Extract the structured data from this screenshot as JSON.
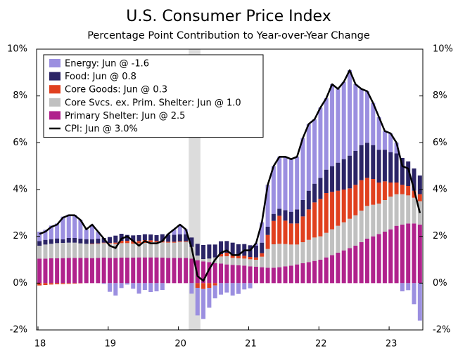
{
  "chart_data": {
    "type": "bar",
    "stacked": true,
    "title": "U.S. Consumer Price Index",
    "subtitle": "Percentage Point Contribution to Year-over-Year Change",
    "categories": [
      "18",
      null,
      null,
      null,
      null,
      null,
      null,
      null,
      null,
      null,
      null,
      null,
      "19",
      null,
      null,
      null,
      null,
      null,
      null,
      null,
      null,
      null,
      null,
      null,
      "20",
      null,
      null,
      null,
      null,
      null,
      null,
      null,
      null,
      null,
      null,
      null,
      "21",
      null,
      null,
      null,
      null,
      null,
      null,
      null,
      null,
      null,
      null,
      null,
      "22",
      null,
      null,
      null,
      null,
      null,
      null,
      null,
      null,
      null,
      null,
      null,
      "23",
      null,
      null,
      null,
      null,
      null
    ],
    "shade": [
      26,
      27
    ],
    "shade_color": "#dcdcdc",
    "ylim": [
      -2,
      10
    ],
    "yticks": [
      {
        "value": -2,
        "label": "-2%"
      },
      {
        "value": 0,
        "label": "0%"
      },
      {
        "value": 2,
        "label": "2%"
      },
      {
        "value": 4,
        "label": "4%"
      },
      {
        "value": 6,
        "label": "6%"
      },
      {
        "value": 8,
        "label": "8%"
      },
      {
        "value": 10,
        "label": "10%"
      }
    ],
    "y2lim": [
      -2,
      10
    ],
    "y2ticks": [
      {
        "value": -2,
        "label": "-2%"
      },
      {
        "value": 0,
        "label": "0%"
      },
      {
        "value": 2,
        "label": "2%"
      },
      {
        "value": 4,
        "label": "4%"
      },
      {
        "value": 6,
        "label": "6%"
      },
      {
        "value": 8,
        "label": "8%"
      },
      {
        "value": 10,
        "label": "10%"
      }
    ],
    "legend": "upper left",
    "series": [
      {
        "name": "Primary Shelter: Jun @ 2.5",
        "color": "#b0228c",
        "values": [
          1.05,
          1.05,
          1.06,
          1.06,
          1.07,
          1.08,
          1.08,
          1.08,
          1.08,
          1.07,
          1.08,
          1.09,
          1.08,
          1.08,
          1.09,
          1.09,
          1.09,
          1.1,
          1.1,
          1.1,
          1.1,
          1.09,
          1.08,
          1.08,
          1.08,
          1.08,
          1.05,
          0.98,
          0.93,
          0.9,
          0.85,
          0.84,
          0.8,
          0.78,
          0.76,
          0.75,
          0.72,
          0.7,
          0.68,
          0.66,
          0.66,
          0.68,
          0.72,
          0.75,
          0.8,
          0.85,
          0.9,
          0.95,
          1.0,
          1.1,
          1.2,
          1.3,
          1.4,
          1.5,
          1.6,
          1.75,
          1.9,
          2.0,
          2.1,
          2.2,
          2.3,
          2.45,
          2.5,
          2.55,
          2.55,
          2.5
        ]
      },
      {
        "name": "Core Svcs. ex. Prim. Shelter: Jun @ 1.0",
        "color": "#c0c0c0",
        "values": [
          0.55,
          0.6,
          0.62,
          0.65,
          0.65,
          0.65,
          0.65,
          0.62,
          0.6,
          0.6,
          0.6,
          0.62,
          0.62,
          0.6,
          0.62,
          0.62,
          0.6,
          0.6,
          0.62,
          0.65,
          0.65,
          0.65,
          0.65,
          0.65,
          0.68,
          0.68,
          0.5,
          0.2,
          0.1,
          0.15,
          0.25,
          0.3,
          0.35,
          0.3,
          0.3,
          0.3,
          0.3,
          0.3,
          0.45,
          0.8,
          1.0,
          1.0,
          0.95,
          0.9,
          0.85,
          0.9,
          0.95,
          1.0,
          1.0,
          1.05,
          1.1,
          1.15,
          1.2,
          1.25,
          1.3,
          1.35,
          1.4,
          1.35,
          1.3,
          1.35,
          1.4,
          1.35,
          1.3,
          1.2,
          1.1,
          1.0
        ]
      },
      {
        "name": "Core Goods: Jun @ 0.3",
        "color": "#e0401f",
        "values": [
          -0.1,
          -0.08,
          -0.06,
          -0.05,
          -0.04,
          -0.03,
          -0.02,
          -0.01,
          0.0,
          0.02,
          0.02,
          0.02,
          0.02,
          0.05,
          0.1,
          0.1,
          0.1,
          0.1,
          0.12,
          0.08,
          0.05,
          0.05,
          0.04,
          0.04,
          0.03,
          0.03,
          0.0,
          -0.2,
          -0.25,
          -0.2,
          -0.1,
          0.1,
          0.15,
          0.1,
          0.1,
          0.12,
          0.1,
          0.1,
          0.15,
          0.6,
          1.0,
          1.2,
          1.0,
          0.9,
          0.9,
          1.1,
          1.3,
          1.5,
          1.6,
          1.7,
          1.6,
          1.5,
          1.4,
          1.3,
          1.3,
          1.3,
          1.2,
          1.1,
          0.9,
          0.8,
          0.6,
          0.5,
          0.4,
          0.4,
          0.3,
          0.3
        ]
      },
      {
        "name": "Food: Jun @ 0.8",
        "color": "#2b2466",
        "values": [
          0.2,
          0.2,
          0.2,
          0.2,
          0.15,
          0.2,
          0.2,
          0.2,
          0.2,
          0.18,
          0.2,
          0.2,
          0.25,
          0.3,
          0.3,
          0.25,
          0.25,
          0.25,
          0.25,
          0.25,
          0.25,
          0.3,
          0.3,
          0.3,
          0.3,
          0.3,
          0.4,
          0.5,
          0.6,
          0.6,
          0.55,
          0.55,
          0.5,
          0.55,
          0.5,
          0.5,
          0.5,
          0.5,
          0.45,
          0.35,
          0.3,
          0.3,
          0.45,
          0.5,
          0.6,
          0.7,
          0.8,
          0.8,
          0.9,
          1.0,
          1.1,
          1.2,
          1.3,
          1.4,
          1.45,
          1.5,
          1.5,
          1.45,
          1.4,
          1.35,
          1.3,
          1.25,
          1.15,
          1.05,
          0.95,
          0.8
        ]
      },
      {
        "name": "Energy: Jun @ -1.6",
        "color": "#9b8fe0",
        "values": [
          0.4,
          0.43,
          0.58,
          0.64,
          0.97,
          1.0,
          0.99,
          0.81,
          0.42,
          0.63,
          0.3,
          -0.03,
          -0.37,
          -0.53,
          -0.21,
          -0.06,
          -0.24,
          -0.45,
          -0.29,
          -0.38,
          -0.35,
          -0.29,
          0.03,
          0.23,
          0.41,
          0.21,
          -0.45,
          -1.18,
          -1.28,
          -0.85,
          -0.55,
          -0.49,
          -0.4,
          -0.53,
          -0.46,
          -0.27,
          -0.22,
          0.1,
          0.87,
          1.79,
          2.04,
          2.22,
          2.28,
          2.25,
          2.25,
          2.65,
          2.85,
          2.75,
          3.0,
          3.05,
          3.5,
          3.15,
          3.3,
          3.65,
          2.85,
          2.4,
          2.2,
          1.8,
          1.4,
          0.8,
          0.8,
          0.45,
          -0.35,
          -0.3,
          -0.9,
          -1.6
        ]
      },
      {
        "name": "CPI: Jun @ 3.0%",
        "color": "#000000",
        "type": "line",
        "values": [
          2.1,
          2.2,
          2.4,
          2.5,
          2.8,
          2.9,
          2.9,
          2.7,
          2.3,
          2.5,
          2.2,
          1.9,
          1.6,
          1.5,
          1.9,
          2.0,
          1.8,
          1.6,
          1.8,
          1.7,
          1.7,
          1.8,
          2.1,
          2.3,
          2.5,
          2.3,
          1.5,
          0.3,
          0.1,
          0.6,
          1.0,
          1.3,
          1.4,
          1.2,
          1.2,
          1.4,
          1.4,
          1.7,
          2.6,
          4.2,
          5.0,
          5.4,
          5.4,
          5.3,
          5.4,
          6.2,
          6.8,
          7.0,
          7.5,
          7.9,
          8.5,
          8.3,
          8.6,
          9.1,
          8.5,
          8.3,
          8.2,
          7.7,
          7.1,
          6.5,
          6.4,
          6.0,
          5.0,
          4.9,
          4.0,
          3.0
        ]
      }
    ],
    "legend_order": [
      4,
      3,
      2,
      1,
      0,
      5
    ]
  }
}
